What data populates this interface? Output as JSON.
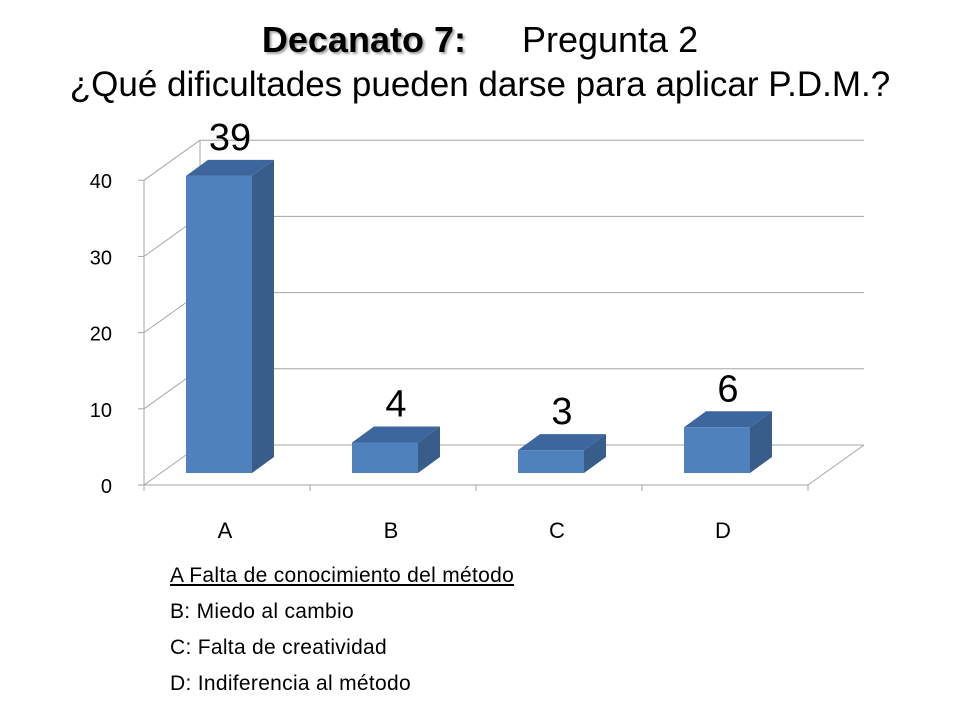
{
  "title": {
    "bold": "Decanato 7:",
    "regular": "Pregunta 2",
    "question": "¿Qué dificultades pueden darse para aplicar P.D.M.?"
  },
  "chart_data": {
    "type": "bar",
    "categories": [
      "A",
      "B",
      "C",
      "D"
    ],
    "values": [
      39,
      4,
      3,
      6
    ],
    "data_labels": [
      "39",
      "4",
      "3",
      "6"
    ],
    "ylim": [
      0,
      40
    ],
    "yticks": [
      "0",
      "10",
      "20",
      "30",
      "40"
    ],
    "grid": true,
    "style": "3d-column",
    "colors": {
      "bar_front": "#4f81bd",
      "bar_side": "#385d8a",
      "bar_top": "#3c669d",
      "grid": "#a6a6a6"
    }
  },
  "legend": {
    "items": [
      "A Falta de conocimiento del método",
      "B: Miedo al cambio",
      "C: Falta de creatividad",
      "D: Indiferencia al método"
    ]
  }
}
